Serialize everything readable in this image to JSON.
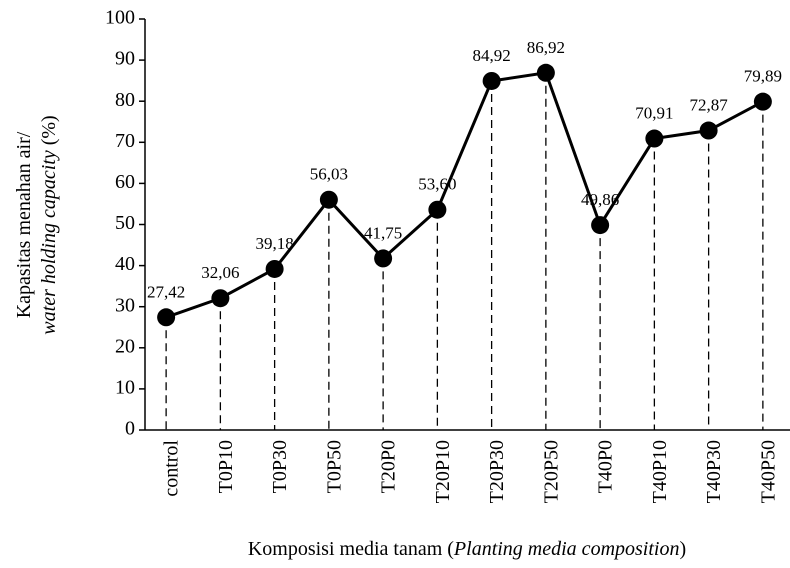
{
  "chart_data": {
    "type": "line",
    "categories": [
      "control",
      "T0P10",
      "T0P30",
      "T0P50",
      "T20P0",
      "T20P10",
      "T20P30",
      "T20P50",
      "T40P0",
      "T40P10",
      "T40P30",
      "T40P50"
    ],
    "series": [
      {
        "color": "#000000",
        "values": [
          27.42,
          32.06,
          39.18,
          56.03,
          41.75,
          53.6,
          84.92,
          86.92,
          49.86,
          70.91,
          72.87,
          79.89
        ],
        "value_labels": [
          "27,42",
          "32,06",
          "39,18",
          "56,03",
          "41,75",
          "53,60",
          "84,92",
          "86,92",
          "49,86",
          "70,91",
          "72,87",
          "79,89"
        ]
      }
    ],
    "ylim": [
      0,
      100
    ],
    "yticks": [
      0,
      10,
      20,
      30,
      40,
      50,
      60,
      70,
      80,
      90,
      100
    ],
    "y_label": [
      "Kapasitas menahan air/",
      "water holding capacity",
      " (%)"
    ],
    "x_label": [
      "Komposisi media tanam (",
      "Planting media composition",
      ")"
    ],
    "grid": false
  }
}
